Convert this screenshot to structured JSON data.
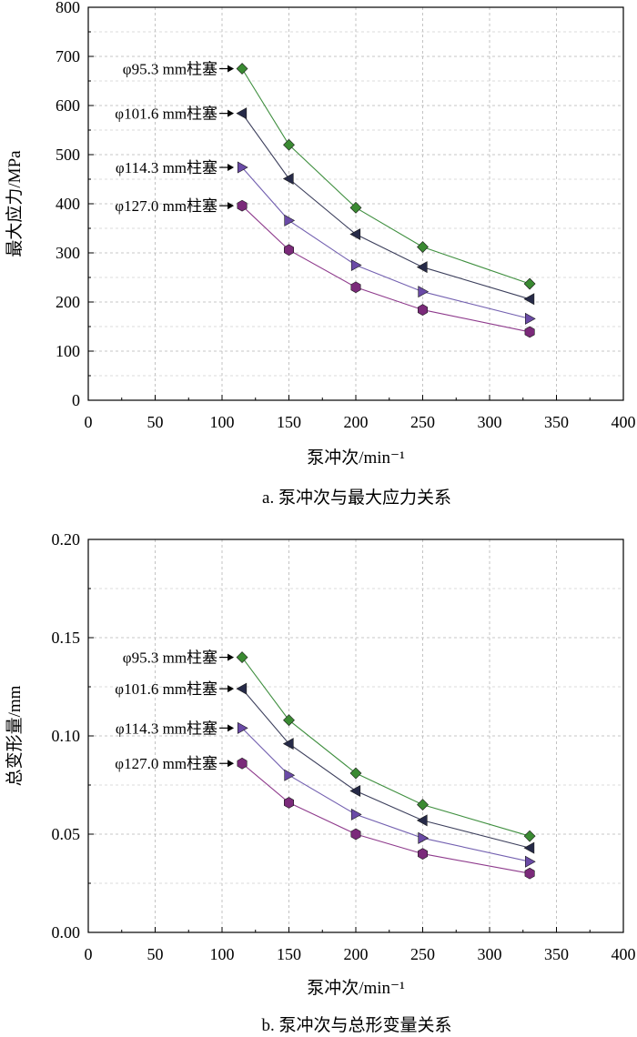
{
  "chart_data": [
    {
      "type": "line",
      "caption": "a. 泵冲次与最大应力关系",
      "xlabel": "泵冲次/min⁻¹",
      "ylabel": "最大应力/MPa",
      "xlim": [
        0,
        400
      ],
      "ylim": [
        0,
        800
      ],
      "xticks": [
        0,
        50,
        100,
        150,
        200,
        250,
        300,
        350,
        400
      ],
      "xtick_labels": [
        "0",
        "50",
        "100",
        "150",
        "200",
        "250",
        "300",
        "350",
        "400"
      ],
      "yticks": [
        0,
        100,
        200,
        300,
        400,
        500,
        600,
        700,
        800
      ],
      "ytick_labels": [
        "0",
        "100",
        "200",
        "300",
        "400",
        "500",
        "600",
        "700",
        "800"
      ],
      "grid": true,
      "x": [
        115,
        150,
        200,
        250,
        330
      ],
      "series": [
        {
          "name": "φ95.3 mm柱塞",
          "marker": "diamond",
          "color": "#3a8a32",
          "line_color": "#3f8f3f",
          "values": [
            675,
            520,
            392,
            312,
            237
          ]
        },
        {
          "name": "φ101.6 mm柱塞",
          "marker": "triangle-left",
          "color": "#262a48",
          "line_color": "#3c3f5c",
          "values": [
            584,
            451,
            338,
            271,
            206
          ]
        },
        {
          "name": "φ114.3 mm柱塞",
          "marker": "triangle-right",
          "color": "#6a4aa6",
          "line_color": "#7360b0",
          "values": [
            474,
            366,
            275,
            221,
            166
          ]
        },
        {
          "name": "φ127.0 mm柱塞",
          "marker": "hexagon",
          "color": "#7b2a7a",
          "line_color": "#8e3a8c",
          "values": [
            396,
            306,
            230,
            184,
            139
          ]
        }
      ]
    },
    {
      "type": "line",
      "caption": "b. 泵冲次与总形变量关系",
      "xlabel": "泵冲次/min⁻¹",
      "ylabel": "总变形量/mm",
      "xlim": [
        0,
        400
      ],
      "ylim": [
        0,
        0.2
      ],
      "xticks": [
        0,
        50,
        100,
        150,
        200,
        250,
        300,
        350,
        400
      ],
      "xtick_labels": [
        "0",
        "50",
        "100",
        "150",
        "200",
        "250",
        "300",
        "350",
        "400"
      ],
      "yticks": [
        0,
        0.05,
        0.1,
        0.15,
        0.2
      ],
      "ytick_labels": [
        "0.00",
        "0.05",
        "0.10",
        "0.15",
        "0.20"
      ],
      "grid": true,
      "x": [
        115,
        150,
        200,
        250,
        330
      ],
      "series": [
        {
          "name": "φ95.3 mm柱塞",
          "marker": "diamond",
          "color": "#3a8a32",
          "line_color": "#3f8f3f",
          "values": [
            0.14,
            0.108,
            0.081,
            0.065,
            0.049
          ]
        },
        {
          "name": "φ101.6 mm柱塞",
          "marker": "triangle-left",
          "color": "#262a48",
          "line_color": "#3c3f5c",
          "values": [
            0.124,
            0.096,
            0.072,
            0.057,
            0.043
          ]
        },
        {
          "name": "φ114.3 mm柱塞",
          "marker": "triangle-right",
          "color": "#6a4aa6",
          "line_color": "#7360b0",
          "values": [
            0.104,
            0.08,
            0.06,
            0.048,
            0.036
          ]
        },
        {
          "name": "φ127.0 mm柱塞",
          "marker": "hexagon",
          "color": "#7b2a7a",
          "line_color": "#8e3a8c",
          "values": [
            0.086,
            0.066,
            0.05,
            0.04,
            0.03
          ]
        }
      ]
    }
  ]
}
